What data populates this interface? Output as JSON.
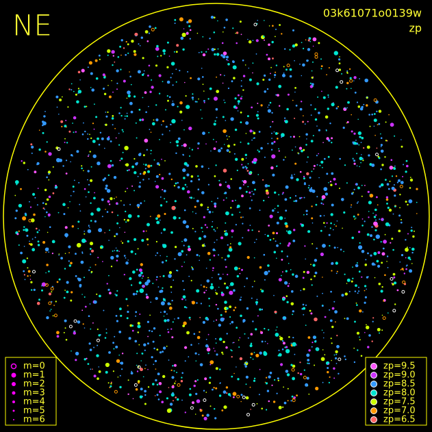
{
  "header": {
    "direction": "NE",
    "frame_id": "03k61071o0139w",
    "mode": "zp"
  },
  "legend_m": {
    "items": [
      "m=0",
      "m=1",
      "m=2",
      "m=3",
      "m=4",
      "m=5",
      "m=6"
    ],
    "color": "#ff00ff"
  },
  "legend_zp": {
    "items": [
      {
        "label": "zp=9.5",
        "color": "#ff55ff"
      },
      {
        "label": "zp=9.0",
        "color": "#cc33ff"
      },
      {
        "label": "zp=8.5",
        "color": "#3399ff"
      },
      {
        "label": "zp=8.0",
        "color": "#00e5d0"
      },
      {
        "label": "zp=7.5",
        "color": "#ccff00"
      },
      {
        "label": "zp=7.0",
        "color": "#ff9900"
      },
      {
        "label": "zp=6.5",
        "color": "#ff6666"
      }
    ]
  }
}
